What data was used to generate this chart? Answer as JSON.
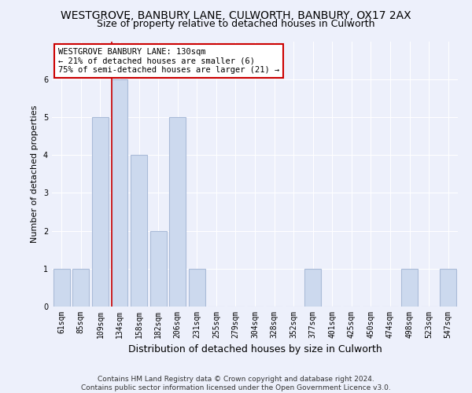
{
  "title": "WESTGROVE, BANBURY LANE, CULWORTH, BANBURY, OX17 2AX",
  "subtitle": "Size of property relative to detached houses in Culworth",
  "xlabel": "Distribution of detached houses by size in Culworth",
  "ylabel": "Number of detached properties",
  "footer_line1": "Contains HM Land Registry data © Crown copyright and database right 2024.",
  "footer_line2": "Contains public sector information licensed under the Open Government Licence v3.0.",
  "categories": [
    "61sqm",
    "85sqm",
    "109sqm",
    "134sqm",
    "158sqm",
    "182sqm",
    "206sqm",
    "231sqm",
    "255sqm",
    "279sqm",
    "304sqm",
    "328sqm",
    "352sqm",
    "377sqm",
    "401sqm",
    "425sqm",
    "450sqm",
    "474sqm",
    "498sqm",
    "523sqm",
    "547sqm"
  ],
  "values": [
    1,
    1,
    5,
    6,
    4,
    2,
    5,
    1,
    0,
    0,
    0,
    0,
    0,
    1,
    0,
    0,
    0,
    0,
    1,
    0,
    1
  ],
  "bar_color": "#ccd9ee",
  "bar_edge_color": "#aabbd8",
  "marker_color": "#cc0000",
  "annotation_text": "WESTGROVE BANBURY LANE: 130sqm\n← 21% of detached houses are smaller (6)\n75% of semi-detached houses are larger (21) →",
  "annotation_box_color": "white",
  "annotation_box_edge": "#cc0000",
  "ylim": [
    0,
    7
  ],
  "yticks": [
    0,
    1,
    2,
    3,
    4,
    5,
    6,
    7
  ],
  "background_color": "#edf0fb",
  "grid_color": "#ffffff",
  "title_fontsize": 10,
  "subtitle_fontsize": 9,
  "axis_label_fontsize": 9,
  "tick_fontsize": 7,
  "ylabel_fontsize": 8,
  "footer_fontsize": 6.5,
  "annotation_fontsize": 7.5
}
